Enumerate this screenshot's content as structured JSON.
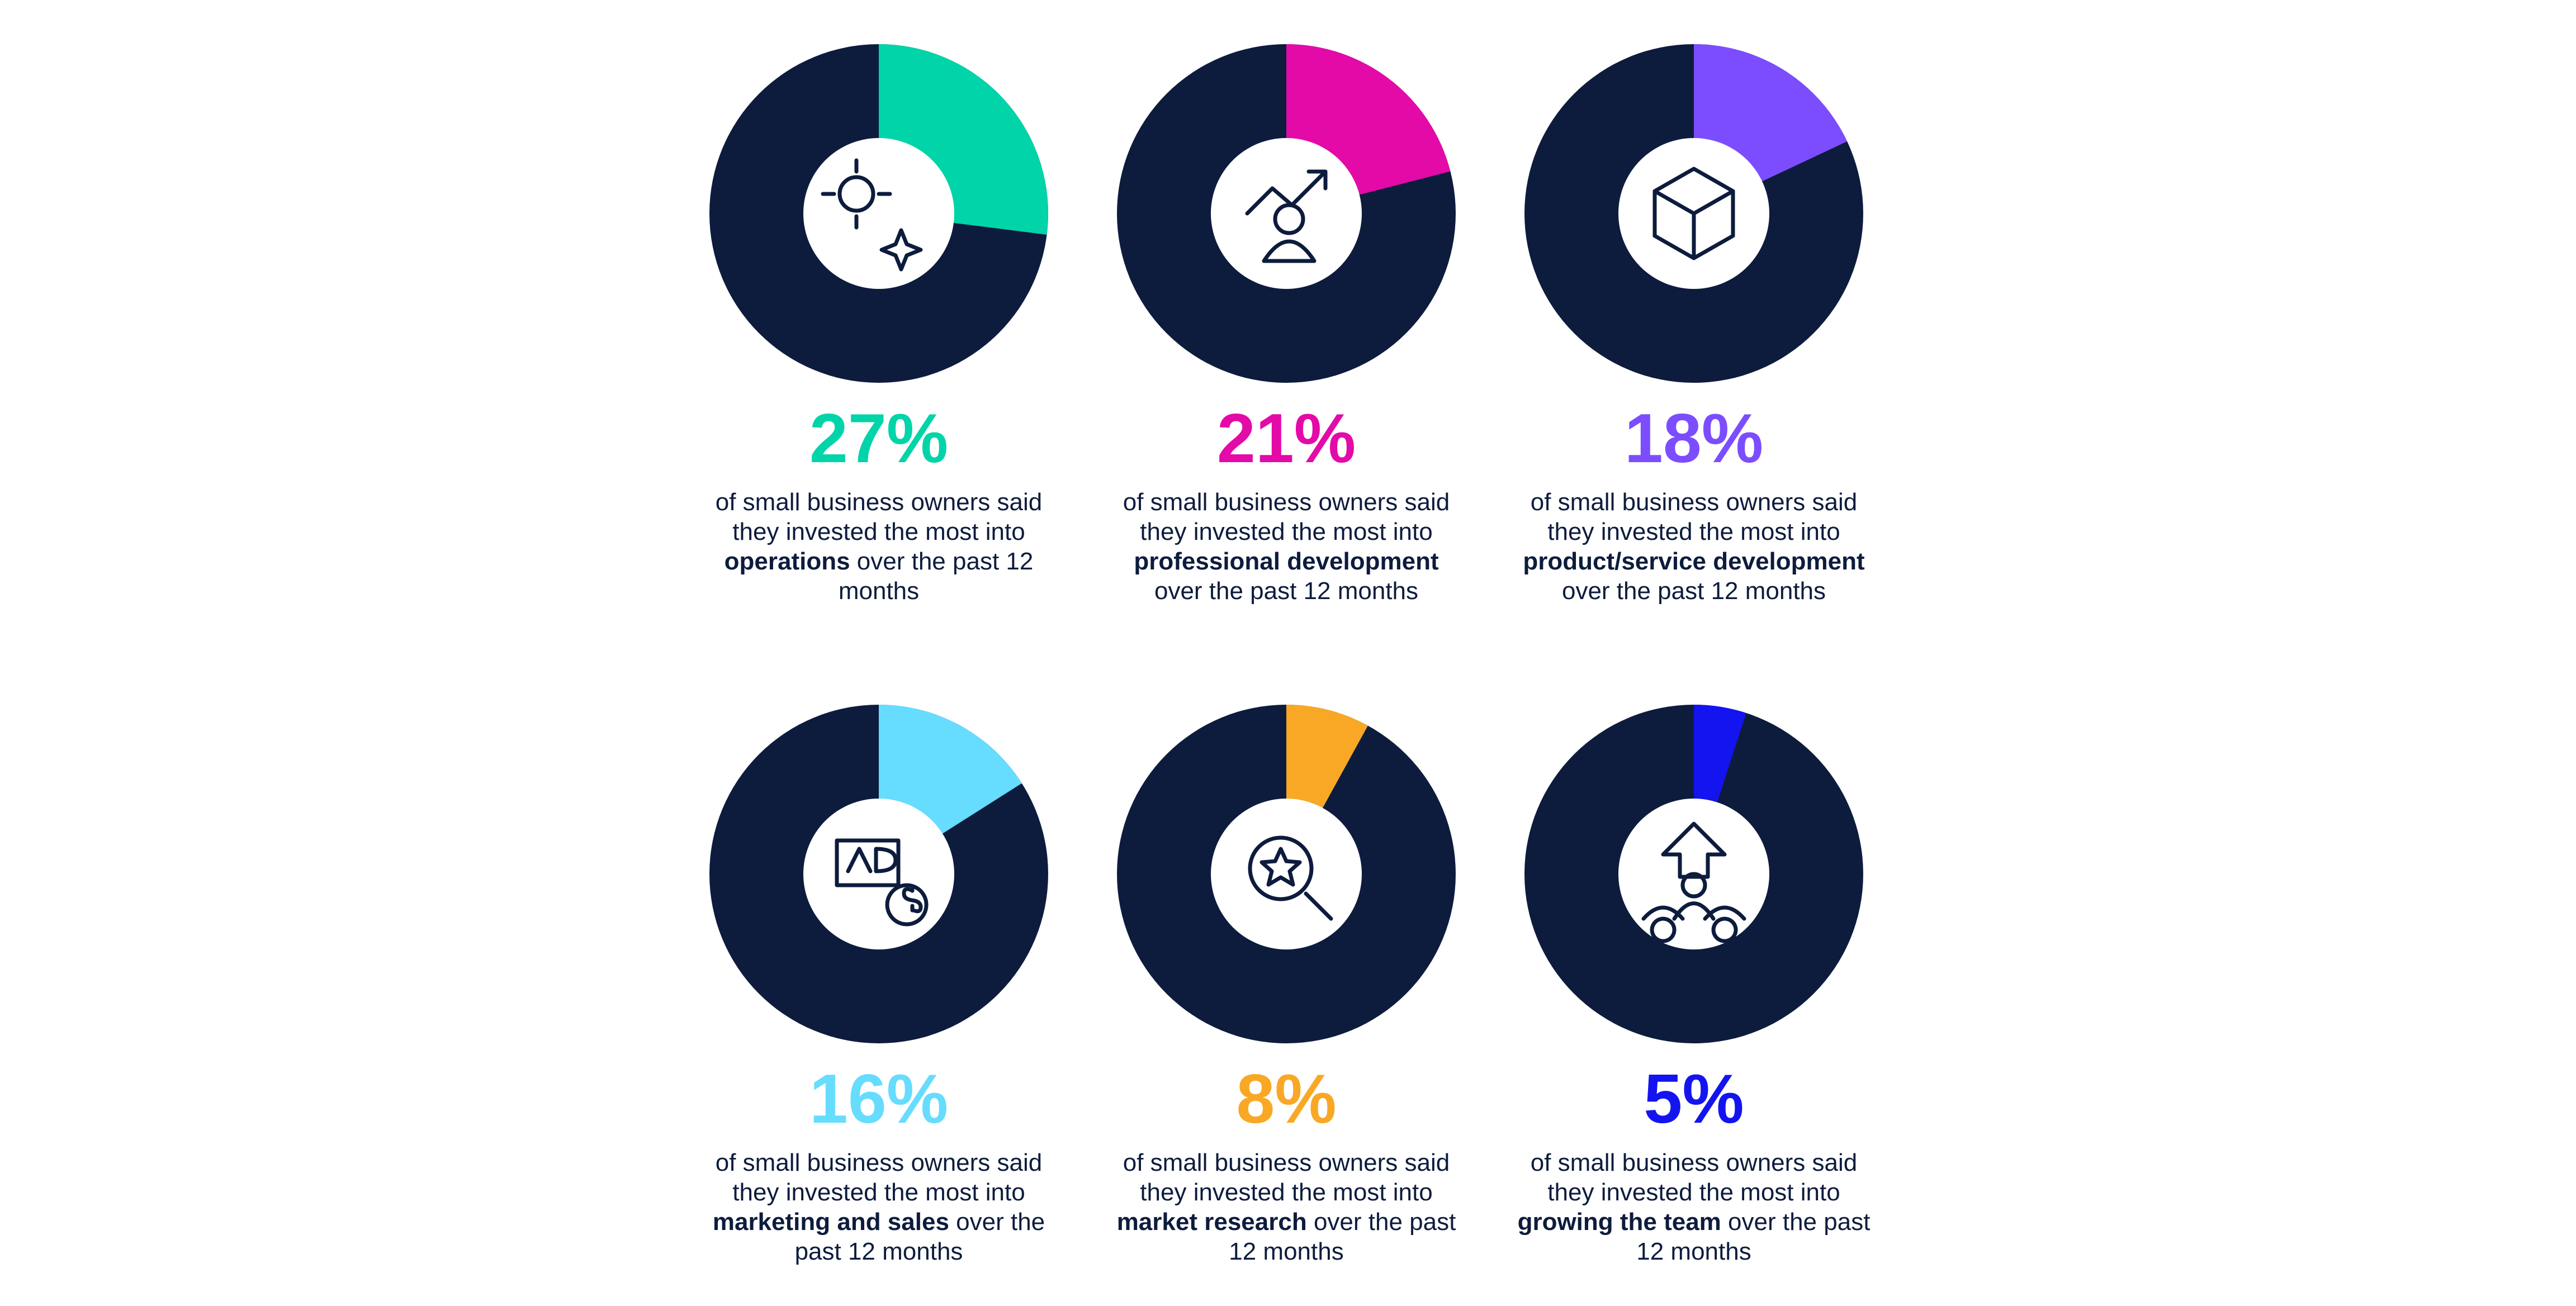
{
  "chart_data": [
    {
      "type": "pie",
      "donut": true,
      "values": [
        27
      ],
      "value_labels": [
        "27%"
      ],
      "color": "#00d4a8",
      "caption": {
        "before": "of small business owners said they invested the most into",
        "bold": "operations",
        "after": "over the past 12 months"
      }
    },
    {
      "type": "pie",
      "donut": true,
      "values": [
        21
      ],
      "value_labels": [
        "21%"
      ],
      "color": "#e30aa8",
      "caption": {
        "before": "of small business owners said they invested the most into",
        "bold": "professional development",
        "after": "over the past 12 months"
      }
    },
    {
      "type": "pie",
      "donut": true,
      "values": [
        18
      ],
      "value_labels": [
        "18%"
      ],
      "color": "#7c4dff",
      "caption": {
        "before": "of small business owners said they invested the most into",
        "bold": "product/service development",
        "after": "over the past 12 months"
      }
    },
    {
      "type": "pie",
      "donut": true,
      "values": [
        16
      ],
      "value_labels": [
        "16%"
      ],
      "color": "#66dcff",
      "caption": {
        "before": "of small business owners said they invested the most into",
        "bold": "marketing and sales",
        "after": "over the past 12 months"
      }
    },
    {
      "type": "pie",
      "donut": true,
      "values": [
        8
      ],
      "value_labels": [
        "8%"
      ],
      "color": "#f9a825",
      "caption": {
        "before": "of small business owners said they invested the most into",
        "bold": "market research",
        "after": "over the past 12 months"
      }
    },
    {
      "type": "pie",
      "donut": true,
      "values": [
        5
      ],
      "value_labels": [
        "5%"
      ],
      "color": "#1414f0",
      "caption": {
        "before": "of small business owners said they invested the most into",
        "bold": "growing the team",
        "after": "over the past 12 months"
      }
    }
  ]
}
